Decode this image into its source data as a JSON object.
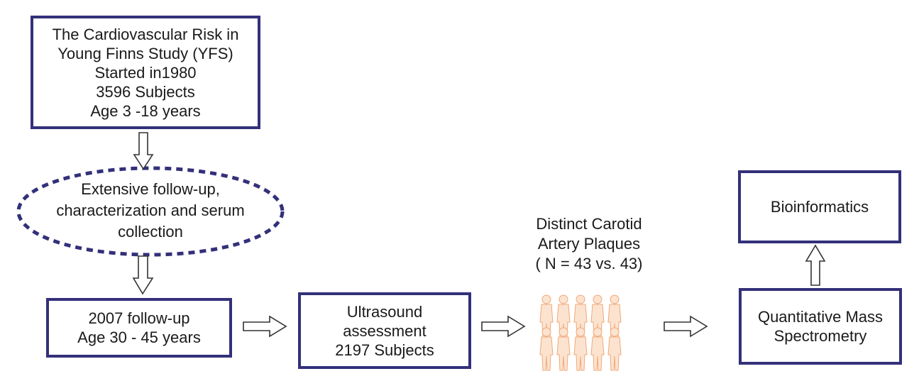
{
  "yfs_box": {
    "lines": [
      "The Cardiovascular Risk in",
      "Young Finns Study (YFS)",
      "Started in1980",
      "3596 Subjects",
      "Age 3 -18 years"
    ]
  },
  "followup_ellipse": {
    "lines": [
      "Extensive follow-up,",
      "characterization and serum",
      "collection"
    ]
  },
  "followup_2007_box": {
    "lines": [
      "2007 follow-up",
      "Age 30 - 45 years"
    ]
  },
  "ultrasound_box": {
    "lines": [
      "Ultrasound",
      "assessment",
      "2197 Subjects"
    ]
  },
  "plaques_label": {
    "lines": [
      "Distinct Carotid",
      "Artery Plaques",
      "( N = 43 vs. 43)"
    ]
  },
  "mass_spec_box": {
    "lines": [
      "Quantitative Mass",
      "Spectrometry"
    ]
  },
  "bioinformatics_box": {
    "lines": [
      "Bioinformatics"
    ]
  },
  "colors": {
    "box_border": "#33307a",
    "people_fill": "#fbe3cf",
    "people_stroke": "#f2a878",
    "arrow_stroke": "#333333"
  },
  "icons": [
    "people-group-icon"
  ]
}
